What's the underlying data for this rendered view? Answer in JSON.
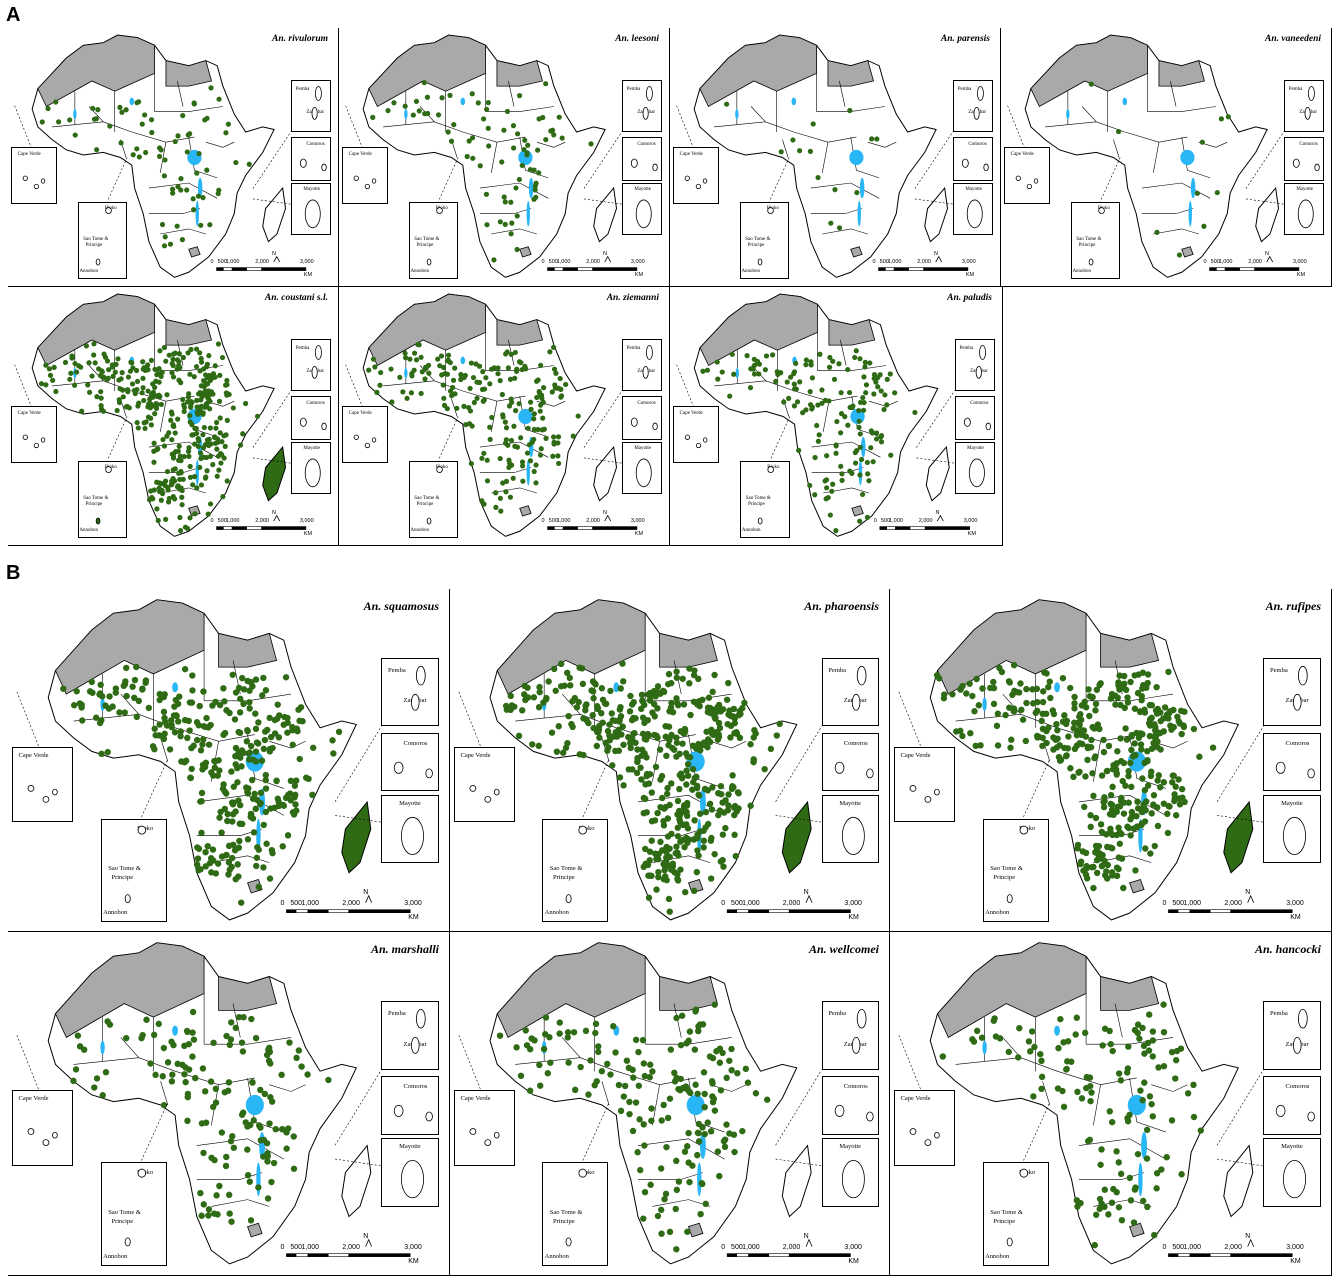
{
  "parts": [
    {
      "label": "A",
      "panels": [
        {
          "species": "An. rivulorum",
          "density": 70,
          "madagascar_fill": false,
          "seed": 11
        },
        {
          "species": "An. leesoni",
          "density": 75,
          "madagascar_fill": false,
          "seed": 23
        },
        {
          "species": "An. parensis",
          "density": 14,
          "madagascar_fill": false,
          "seed": 37
        },
        {
          "species": "An. vaneedeni",
          "density": 10,
          "madagascar_fill": false,
          "seed": 41
        },
        {
          "species": "An. coustani s.l.",
          "density": 380,
          "madagascar_fill": true,
          "seed": 53
        },
        {
          "species": "An. ziemanni",
          "density": 200,
          "madagascar_fill": false,
          "seed": 67
        },
        {
          "species": "An. paludis",
          "density": 150,
          "madagascar_fill": false,
          "seed": 71
        }
      ]
    },
    {
      "label": "B",
      "panels": [
        {
          "species": "An. squamosus",
          "density": 330,
          "madagascar_fill": true,
          "seed": 83
        },
        {
          "species": "An. pharoensis",
          "density": 480,
          "madagascar_fill": true,
          "seed": 97
        },
        {
          "species": "An. rufipes",
          "density": 420,
          "madagascar_fill": true,
          "seed": 101
        },
        {
          "species": "An. marshalli",
          "density": 140,
          "madagascar_fill": false,
          "seed": 113
        },
        {
          "species": "An. wellcomei",
          "density": 170,
          "madagascar_fill": false,
          "seed": 127
        },
        {
          "species": "An. hancocki",
          "density": 130,
          "madagascar_fill": false,
          "seed": 131
        }
      ]
    }
  ],
  "insets": {
    "cape_verde": "Cape Verde",
    "bioko": "Bioko",
    "sao_tome_line1": "Sao Tome &",
    "sao_tome_line2": "Principe",
    "annobon": "Annobon",
    "pemba": "Pemba",
    "zanzibar": "Zanzibar",
    "comoros": "Comoros",
    "mayotte": "Mayotte"
  },
  "scale": {
    "ticks": [
      "0",
      "500",
      "1,000",
      "2,000",
      "3,000"
    ],
    "unit": "KM",
    "north": "N"
  },
  "colors": {
    "occurrence_dot": "#2e6b14",
    "water": "#29b6f6",
    "excluded_region": "#a9a9a9",
    "land": "#ffffff",
    "border": "#000000"
  }
}
